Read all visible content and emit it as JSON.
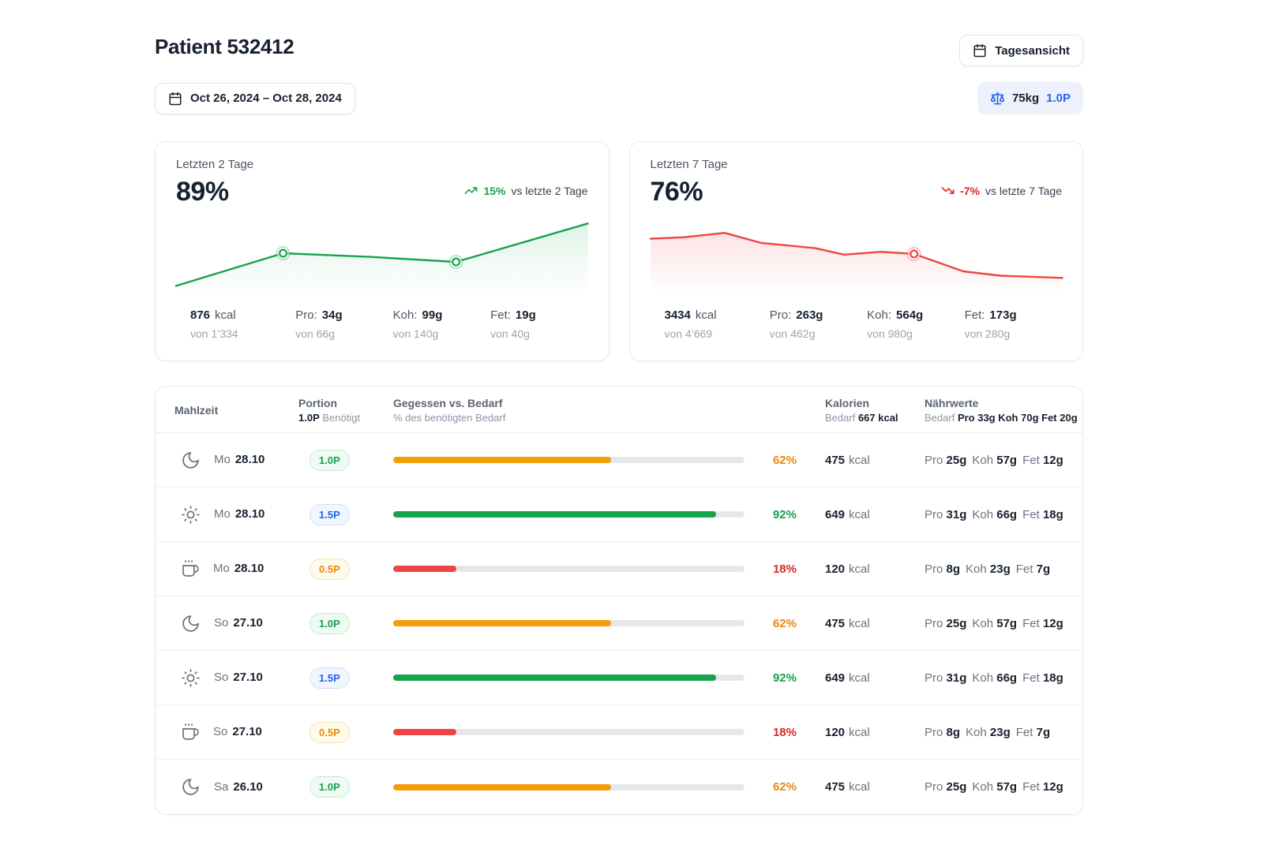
{
  "colors": {
    "accent_blue": "#2563eb",
    "green": "#16a34a",
    "red": "#ef4444",
    "track": "#e5e7eb",
    "warn_bar": "#f59e0b",
    "warn_text": "#e8890c",
    "good_bar": "#16a34a",
    "good_text": "#16a34a",
    "bad_bar": "#ef4444",
    "bad_text": "#dc2626"
  },
  "header": {
    "title": "Patient 532412",
    "view_button_label": "Tagesansicht",
    "date_range": "Oct 26, 2024 – Oct 28, 2024",
    "weight_value": "75kg",
    "weight_portion": "1.0P"
  },
  "cards": [
    {
      "label": "Letzten 2 Tage",
      "percent": "89%",
      "trend_value": "15%",
      "trend_text": "vs letzte 2 Tage",
      "trend_direction": "up",
      "stats": [
        {
          "label_before": "",
          "bold": "876",
          "label_after": "kcal",
          "sub": "von 1’334"
        },
        {
          "label_before": "Pro:",
          "bold": "34g",
          "label_after": "",
          "sub": "von 66g"
        },
        {
          "label_before": "Koh:",
          "bold": "99g",
          "label_after": "",
          "sub": "von 140g"
        },
        {
          "label_before": "Fet:",
          "bold": "19g",
          "label_after": "",
          "sub": "von 40g"
        }
      ]
    },
    {
      "label": "Letzten 7 Tage",
      "percent": "76%",
      "trend_value": "-7%",
      "trend_text": "vs letzte 7 Tage",
      "trend_direction": "down",
      "stats": [
        {
          "label_before": "",
          "bold": "3434",
          "label_after": "kcal",
          "sub": "von 4’669"
        },
        {
          "label_before": "Pro:",
          "bold": "263g",
          "label_after": "",
          "sub": "von 462g"
        },
        {
          "label_before": "Koh:",
          "bold": "564g",
          "label_after": "",
          "sub": "von 980g"
        },
        {
          "label_before": "Fet:",
          "bold": "173g",
          "label_after": "",
          "sub": "von 280g"
        }
      ]
    }
  ],
  "chart_data": [
    {
      "type": "line",
      "name": "last-2-days-sparkline",
      "title": "Letzten 2 Tage",
      "color": "#16a34a",
      "fill_opacity": 0.13,
      "x_range": [
        0,
        100
      ],
      "y_range": [
        0,
        100
      ],
      "points": [
        [
          0,
          95
        ],
        [
          26,
          50
        ],
        [
          47,
          55
        ],
        [
          68,
          62
        ],
        [
          100,
          9
        ]
      ],
      "marker_indices": [
        1,
        3
      ],
      "grid": false,
      "legend": false
    },
    {
      "type": "line",
      "name": "last-7-days-sparkline",
      "title": "Letzten 7 Tage",
      "color": "#ef4444",
      "fill_opacity": 0.15,
      "x_range": [
        0,
        100
      ],
      "y_range": [
        0,
        100
      ],
      "points": [
        [
          0,
          30
        ],
        [
          8,
          28
        ],
        [
          18,
          22
        ],
        [
          27,
          36
        ],
        [
          33,
          39
        ],
        [
          40,
          43
        ],
        [
          47,
          52
        ],
        [
          56,
          48
        ],
        [
          64,
          51
        ],
        [
          76,
          75
        ],
        [
          85,
          81
        ],
        [
          100,
          84
        ]
      ],
      "marker_indices": [
        8
      ],
      "grid": false,
      "legend": false
    }
  ],
  "table": {
    "header": {
      "mahlzeit": "Mahlzeit",
      "portion": "Portion",
      "portion_sub_bold": "1.0P",
      "portion_sub_rest": "Benötigt",
      "gegessen": "Gegessen vs. Bedarf",
      "gegessen_sub": "% des benötigten Bedarf",
      "kalorien": "Kalorien",
      "kalorien_sub_label": "Bedarf",
      "kalorien_sub_bold": "667 kcal",
      "naehrwerte": "Nährwerte",
      "naehrwerte_sub_label": "Bedarf",
      "naehrwerte_sub_bold": "Pro 33g Koh 70g Fet 20g"
    },
    "kcal_unit": "kcal",
    "nutrient_labels": {
      "pro": "Pro",
      "koh": "Koh",
      "fet": "Fet"
    },
    "rows": [
      {
        "icon": "moon",
        "day": "Mo",
        "date": "28.10",
        "portion": "1.0P",
        "portion_style": "green",
        "percent": 62,
        "pct_label": "62%",
        "status": "warn",
        "kcal": "475",
        "pro": "25g",
        "koh": "57g",
        "fet": "12g"
      },
      {
        "icon": "sun",
        "day": "Mo",
        "date": "28.10",
        "portion": "1.5P",
        "portion_style": "blue",
        "percent": 92,
        "pct_label": "92%",
        "status": "good",
        "kcal": "649",
        "pro": "31g",
        "koh": "66g",
        "fet": "18g"
      },
      {
        "icon": "coffee",
        "day": "Mo",
        "date": "28.10",
        "portion": "0.5P",
        "portion_style": "amber",
        "percent": 18,
        "pct_label": "18%",
        "status": "bad",
        "kcal": "120",
        "pro": "8g",
        "koh": "23g",
        "fet": "7g"
      },
      {
        "icon": "moon",
        "day": "So",
        "date": "27.10",
        "portion": "1.0P",
        "portion_style": "green",
        "percent": 62,
        "pct_label": "62%",
        "status": "warn",
        "kcal": "475",
        "pro": "25g",
        "koh": "57g",
        "fet": "12g"
      },
      {
        "icon": "sun",
        "day": "So",
        "date": "27.10",
        "portion": "1.5P",
        "portion_style": "blue",
        "percent": 92,
        "pct_label": "92%",
        "status": "good",
        "kcal": "649",
        "pro": "31g",
        "koh": "66g",
        "fet": "18g"
      },
      {
        "icon": "coffee",
        "day": "So",
        "date": "27.10",
        "portion": "0.5P",
        "portion_style": "amber",
        "percent": 18,
        "pct_label": "18%",
        "status": "bad",
        "kcal": "120",
        "pro": "8g",
        "koh": "23g",
        "fet": "7g"
      },
      {
        "icon": "moon",
        "day": "Sa",
        "date": "26.10",
        "portion": "1.0P",
        "portion_style": "green",
        "percent": 62,
        "pct_label": "62%",
        "status": "warn",
        "kcal": "475",
        "pro": "25g",
        "koh": "57g",
        "fet": "12g"
      }
    ]
  }
}
